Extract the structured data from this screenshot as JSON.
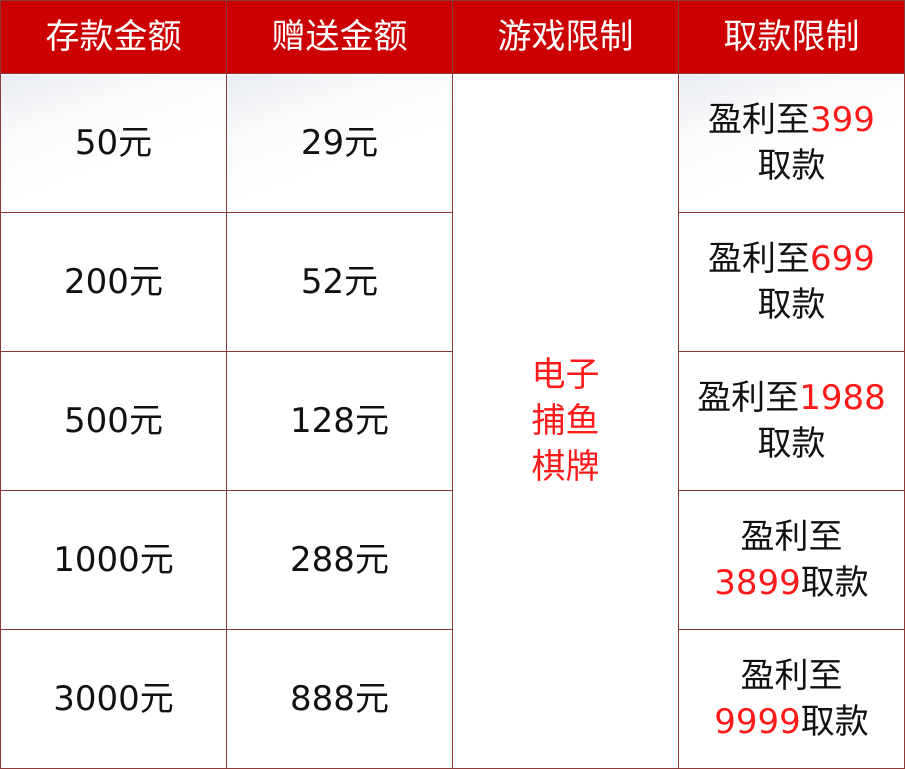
{
  "colors": {
    "header_bg": "#cc0000",
    "highlight": "#ff1a1a",
    "border": "#8b3a3a"
  },
  "headers": [
    "存款金额",
    "赠送金额",
    "游戏限制",
    "取款限制"
  ],
  "game_limit": [
    "电子",
    "捕鱼",
    "棋牌"
  ],
  "rows": [
    {
      "deposit": "50元",
      "bonus": "29元",
      "pre": "盈利至",
      "amount": "399",
      "post": "取款"
    },
    {
      "deposit": "200元",
      "bonus": "52元",
      "pre": "盈利至",
      "amount": "699",
      "post": "取款"
    },
    {
      "deposit": "500元",
      "bonus": "128元",
      "pre": "盈利至",
      "amount": "1988",
      "post": "取款"
    },
    {
      "deposit": "1000元",
      "bonus": "288元",
      "pre": "盈利至",
      "amount": "3899",
      "post": "取款"
    },
    {
      "deposit": "3000元",
      "bonus": "888元",
      "pre": "盈利至",
      "amount": "9999",
      "post": "取款"
    }
  ]
}
